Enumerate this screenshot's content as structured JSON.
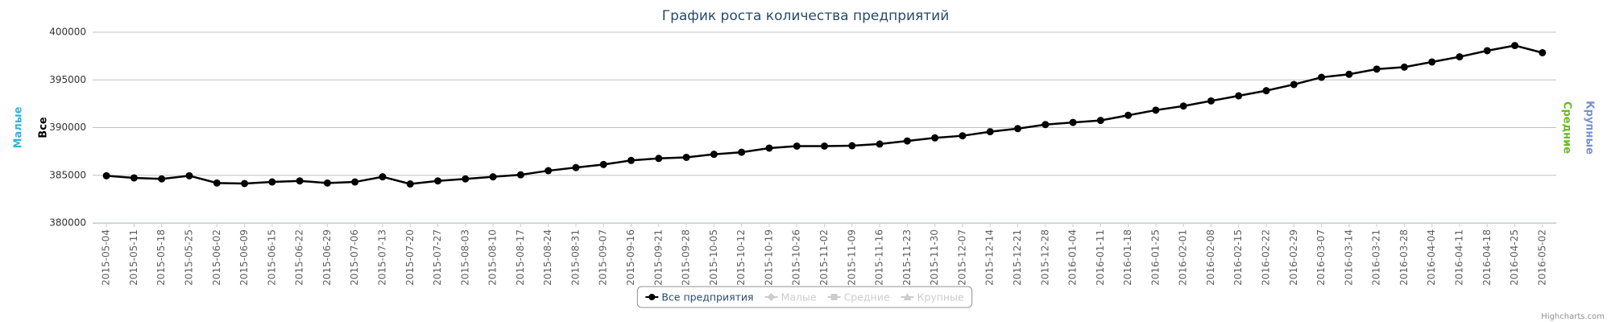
{
  "chart_data": {
    "type": "line",
    "title": "График роста количества предприятий",
    "categories": [
      "2015-05-04",
      "2015-05-11",
      "2015-05-18",
      "2015-05-25",
      "2015-06-02",
      "2015-06-09",
      "2015-06-15",
      "2015-06-22",
      "2015-06-29",
      "2015-07-06",
      "2015-07-13",
      "2015-07-20",
      "2015-07-27",
      "2015-08-03",
      "2015-08-10",
      "2015-08-17",
      "2015-08-24",
      "2015-08-31",
      "2015-09-07",
      "2015-09-16",
      "2015-09-21",
      "2015-09-28",
      "2015-10-05",
      "2015-10-12",
      "2015-10-19",
      "2015-10-26",
      "2015-11-02",
      "2015-11-09",
      "2015-11-16",
      "2015-11-23",
      "2015-11-30",
      "2015-12-07",
      "2015-12-14",
      "2015-12-21",
      "2015-12-28",
      "2016-01-04",
      "2016-01-11",
      "2016-01-18",
      "2016-01-25",
      "2016-02-01",
      "2016-02-08",
      "2016-02-15",
      "2016-02-22",
      "2016-02-29",
      "2016-03-07",
      "2016-03-14",
      "2016-03-21",
      "2016-03-28",
      "2016-04-04",
      "2016-04-11",
      "2016-04-18",
      "2016-04-25",
      "2016-05-02"
    ],
    "series": [
      {
        "name": "Все предприятия",
        "color": "#000000",
        "values": [
          384950,
          384730,
          384620,
          384950,
          384190,
          384140,
          384300,
          384410,
          384190,
          384300,
          384840,
          384090,
          384410,
          384620,
          384840,
          385050,
          385480,
          385810,
          386130,
          386560,
          386770,
          386880,
          387200,
          387420,
          387850,
          388060,
          388060,
          388100,
          388280,
          388600,
          388920,
          389140,
          389570,
          389890,
          390320,
          390540,
          390750,
          391290,
          391830,
          392260,
          392800,
          393330,
          393870,
          394520,
          395270,
          395590,
          396130,
          396340,
          396880,
          397420,
          398060,
          398600,
          397850
        ]
      }
    ],
    "hidden_series": [
      {
        "name": "Малые"
      },
      {
        "name": "Средние"
      },
      {
        "name": "Крупные"
      }
    ],
    "axis_titles": [
      {
        "text": "Малые",
        "color": "#2fb5d6",
        "side": "left"
      },
      {
        "text": "Все",
        "color": "#000000",
        "side": "left"
      },
      {
        "text": "Средние",
        "color": "#66bb22",
        "side": "right"
      },
      {
        "text": "Крупные",
        "color": "#7b8fd0",
        "side": "right"
      }
    ],
    "ylim": [
      380000,
      400000
    ],
    "yticks": [
      380000,
      385000,
      390000,
      395000,
      400000
    ],
    "grid": true,
    "credit": "Highcharts.com"
  }
}
